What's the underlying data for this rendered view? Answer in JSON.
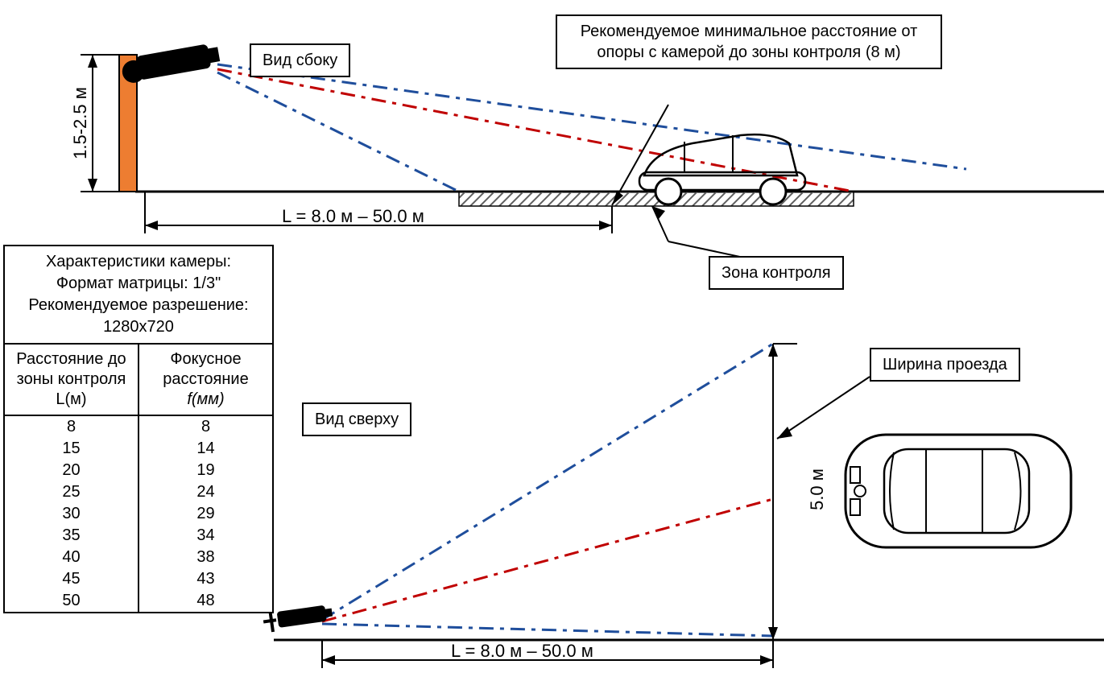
{
  "colors": {
    "bg": "#ffffff",
    "line": "#000000",
    "blue_dash": "#1f4e9c",
    "red_dash": "#c00000",
    "orange_post": "#ed7d31",
    "hatch": "#808080"
  },
  "side_view": {
    "title": "Вид сбоку",
    "height_label": "1.5-2.5 м",
    "distance_label": "L = 8.0 м – 50.0 м",
    "min_distance_note": "Рекомендуемое минимальное расстояние от опоры с камерой до зоны контроля (8 м)",
    "zone_label": "Зона контроля"
  },
  "top_view": {
    "title": "Вид сверху",
    "width_label": "Ширина проезда",
    "width_value": "5.0 м",
    "distance_label": "L = 8.0 м – 50.0 м"
  },
  "table": {
    "title_l1": "Характеристики камеры:",
    "title_l2": "Формат матрицы: 1/3\"",
    "title_l3": "Рекомендуемое разрешение:",
    "title_l4": "1280x720",
    "col1": "Расстояние до зоны контроля L(м)",
    "col2_l1": "Фокусное",
    "col2_l2": "расстояние",
    "col2_l3": "f(мм)",
    "rows": [
      [
        "8",
        "8"
      ],
      [
        "15",
        "14"
      ],
      [
        "20",
        "19"
      ],
      [
        "25",
        "24"
      ],
      [
        "30",
        "29"
      ],
      [
        "35",
        "34"
      ],
      [
        "40",
        "38"
      ],
      [
        "45",
        "43"
      ],
      [
        "50",
        "48"
      ]
    ]
  },
  "style": {
    "title_fontsize": 20,
    "dim_fontsize": 22,
    "dash_pattern_long": "18 10",
    "dash_pattern_short": "14 8 4 8",
    "line_width_thin": 2,
    "line_width_thick": 3
  }
}
